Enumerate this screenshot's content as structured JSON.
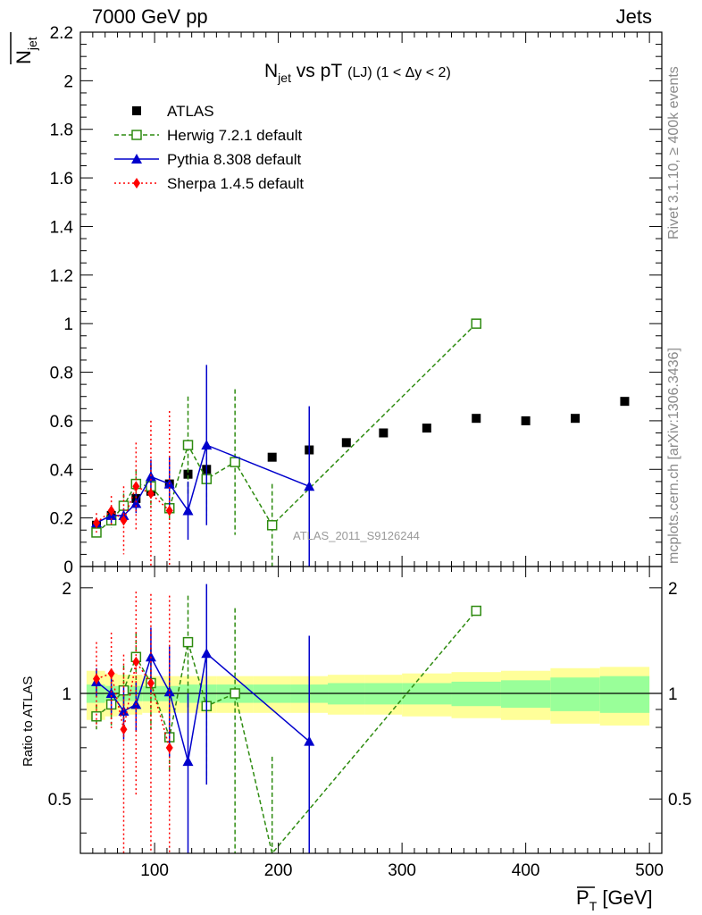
{
  "header": {
    "left": "7000 GeV pp",
    "right": "Jets"
  },
  "side_labels": {
    "rivet": "Rivet 3.1.10, ≥ 400k events",
    "mcplots": "mcplots.cern.ch [arXiv:1306.3436]"
  },
  "chart_data": {
    "type": "scatter",
    "title_main": "N",
    "title_sub": "jet",
    "title_rest": " vs pT",
    "title_small": "(LJ) (1 < Δy < 2)",
    "watermark": "ATLAS_2011_S9126244",
    "ylabel_main": "N",
    "ylabel_sub": "jet",
    "xlabel_main": "P",
    "xlabel_sub": "T",
    "xlabel_unit": " [GeV]",
    "ratio_ylabel": "Ratio to ATLAS",
    "xlim": [
      40,
      510
    ],
    "ylim": [
      0,
      2.2
    ],
    "ratio_ylim": [
      0.35,
      2.3
    ],
    "x_ticks": [
      100,
      200,
      300,
      400,
      500
    ],
    "y_ticks": [
      0,
      0.2,
      0.4,
      0.6,
      0.8,
      1,
      1.2,
      1.4,
      1.6,
      1.8,
      2,
      2.2
    ],
    "y_tick_labels": [
      "0",
      "0.2",
      "0.4",
      "0.6",
      "0.8",
      "1",
      "1.2",
      "1.4",
      "1.6",
      "1.8",
      "2",
      "2.2"
    ],
    "ratio_ticks": [
      0.5,
      1,
      2
    ],
    "ratio_tick_labels": [
      "0.5",
      "1",
      "2"
    ],
    "bins": [
      [
        45,
        60
      ],
      [
        60,
        70
      ],
      [
        70,
        80
      ],
      [
        80,
        90
      ],
      [
        90,
        105
      ],
      [
        105,
        120
      ],
      [
        120,
        135
      ],
      [
        135,
        150
      ],
      [
        150,
        180
      ],
      [
        180,
        210
      ],
      [
        210,
        240
      ],
      [
        240,
        270
      ],
      [
        270,
        300
      ],
      [
        300,
        340
      ],
      [
        340,
        380
      ],
      [
        380,
        420
      ],
      [
        420,
        460
      ],
      [
        460,
        500
      ]
    ],
    "series": [
      {
        "name": "ATLAS",
        "style": "data",
        "color": "#000000",
        "x": [
          53,
          65,
          75,
          85,
          97,
          112,
          127,
          142,
          165,
          195,
          225,
          255,
          285,
          320,
          360,
          400,
          440,
          480
        ],
        "y": [
          0.17,
          0.21,
          0.25,
          0.28,
          0.31,
          0.34,
          0.38,
          0.4,
          0.43,
          0.45,
          0.48,
          0.51,
          0.55,
          0.57,
          0.61,
          0.6,
          0.61,
          0.68
        ],
        "ratio_band_stat": [
          0.06,
          0.05,
          0.05,
          0.05,
          0.05,
          0.05,
          0.06,
          0.06,
          0.06,
          0.06,
          0.06,
          0.07,
          0.07,
          0.07,
          0.08,
          0.09,
          0.11,
          0.12
        ],
        "ratio_band_tot": [
          0.16,
          0.14,
          0.13,
          0.13,
          0.12,
          0.12,
          0.12,
          0.12,
          0.12,
          0.12,
          0.12,
          0.13,
          0.13,
          0.14,
          0.15,
          0.16,
          0.18,
          0.19
        ]
      },
      {
        "name": "Herwig 7.2.1 default",
        "style": "herwig",
        "color": "#2e8b10",
        "x": [
          53,
          65,
          75,
          85,
          97,
          112,
          127,
          142,
          165,
          195,
          360
        ],
        "y": [
          0.14,
          0.19,
          0.25,
          0.34,
          0.33,
          0.24,
          0.5,
          0.36,
          0.43,
          0.17,
          1.0
        ],
        "err": [
          0.02,
          0.03,
          0.05,
          0.06,
          0.09,
          0.06,
          0.2,
          0.15,
          0.3,
          0.17,
          0
        ],
        "ratio": [
          0.86,
          0.93,
          1.02,
          1.27,
          1.07,
          0.75,
          1.4,
          0.92,
          1.0,
          0.33,
          1.72
        ],
        "ratio_err": [
          0.07,
          0.12,
          0.18,
          0.22,
          0.28,
          0.15,
          0.5,
          0.35,
          0.75,
          0.33,
          0
        ]
      },
      {
        "name": "Pythia 8.308 default",
        "style": "pythia",
        "color": "#0000cc",
        "x": [
          53,
          65,
          75,
          85,
          97,
          112,
          127,
          142,
          225
        ],
        "y": [
          0.18,
          0.21,
          0.21,
          0.26,
          0.37,
          0.34,
          0.23,
          0.5,
          0.33
        ],
        "err": [
          0.02,
          0.03,
          0.03,
          0.04,
          0.07,
          0.11,
          0.12,
          0.33,
          0.33
        ],
        "ratio": [
          1.08,
          1.0,
          0.89,
          0.93,
          1.27,
          1.01,
          0.64,
          1.3,
          0.73
        ],
        "ratio_err": [
          0.1,
          0.13,
          0.15,
          0.15,
          0.27,
          0.35,
          0.36,
          0.75,
          0.73
        ]
      },
      {
        "name": "Sherpa 1.4.5 default",
        "style": "sherpa",
        "color": "#ff0000",
        "x": [
          53,
          65,
          75,
          85,
          97,
          112
        ],
        "y": [
          0.18,
          0.23,
          0.19,
          0.33,
          0.3,
          0.23
        ],
        "err": [
          0.04,
          0.06,
          0.14,
          0.18,
          0.3,
          0.41
        ],
        "ratio": [
          1.1,
          1.14,
          0.79,
          1.23,
          1.07,
          0.7
        ],
        "ratio_err": [
          0.3,
          0.35,
          0.5,
          0.72,
          0.85,
          1.2
        ]
      }
    ]
  }
}
